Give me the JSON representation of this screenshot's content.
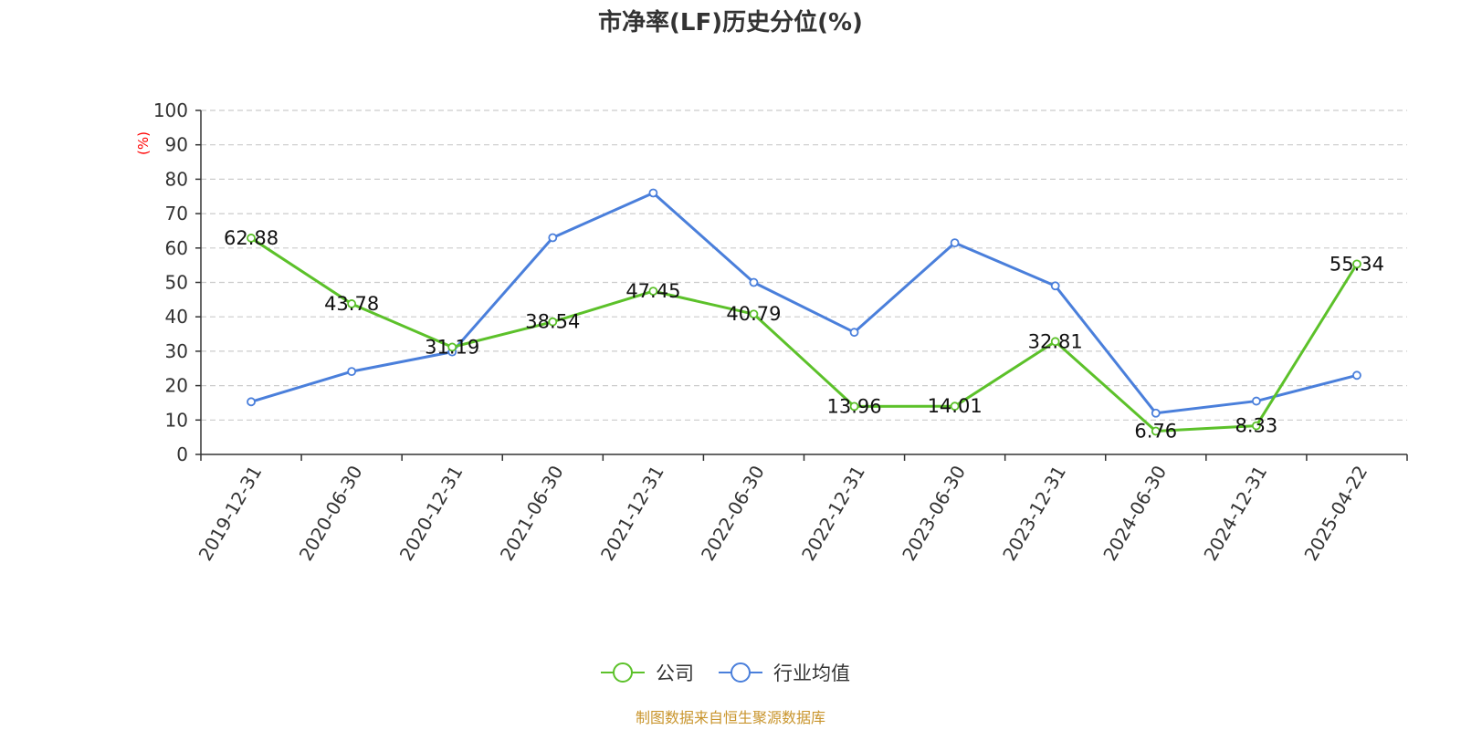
{
  "chart_data": {
    "type": "line",
    "title": "市净率(LF)历史分位(%)",
    "y_unit": "(%)",
    "ylim": [
      0,
      100
    ],
    "y_ticks": [
      0,
      10,
      20,
      30,
      40,
      50,
      60,
      70,
      80,
      90,
      100
    ],
    "grid": true,
    "legend_position": "bottom",
    "categories": [
      "2019-12-31",
      "2020-06-30",
      "2020-12-31",
      "2021-06-30",
      "2021-12-31",
      "2022-06-30",
      "2022-12-31",
      "2023-06-30",
      "2023-12-31",
      "2024-06-30",
      "2024-12-31",
      "2025-04-22"
    ],
    "series": [
      {
        "name": "公司",
        "color": "#5cc12a",
        "values": [
          62.88,
          43.78,
          31.19,
          38.54,
          47.45,
          40.79,
          13.96,
          14.01,
          32.81,
          6.76,
          8.33,
          55.34
        ],
        "labels": [
          "62.88",
          "43.78",
          "31.19",
          "38.54",
          "47.45",
          "40.79",
          "13.96",
          "14.01",
          "32.81",
          "6.76",
          "8.33",
          "55.34"
        ]
      },
      {
        "name": "行业均值",
        "color": "#4a7fdb",
        "values": [
          15.3,
          24.1,
          29.8,
          63.0,
          76.0,
          50.0,
          35.5,
          61.5,
          49.0,
          12.0,
          15.5,
          23.0
        ]
      }
    ],
    "source": "制图数据来自恒生聚源数据库"
  }
}
